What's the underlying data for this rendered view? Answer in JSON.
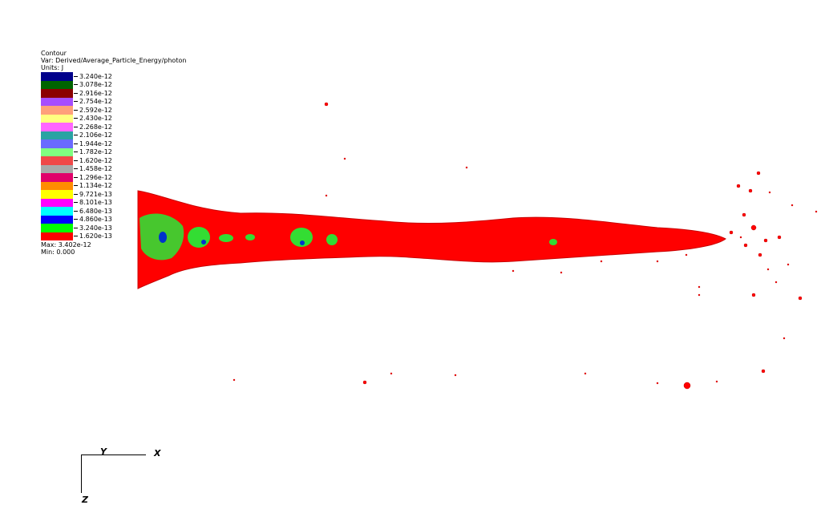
{
  "legend": {
    "title": "Contour",
    "var": "Var: Derived/Average_Particle_Energy/photon",
    "units": "Units: J",
    "levels": [
      {
        "label": "3.240e-12",
        "color": "#00008b"
      },
      {
        "label": "3.078e-12",
        "color": "#006400"
      },
      {
        "label": "2.916e-12",
        "color": "#8b0000"
      },
      {
        "label": "2.754e-12",
        "color": "#a64dff"
      },
      {
        "label": "2.592e-12",
        "color": "#ffa07a"
      },
      {
        "label": "2.430e-12",
        "color": "#ffff80"
      },
      {
        "label": "2.268e-12",
        "color": "#ff66ff"
      },
      {
        "label": "2.106e-12",
        "color": "#2aa3a3"
      },
      {
        "label": "1.944e-12",
        "color": "#6a6aff"
      },
      {
        "label": "1.782e-12",
        "color": "#80ff80"
      },
      {
        "label": "1.620e-12",
        "color": "#f04848"
      },
      {
        "label": "1.458e-12",
        "color": "#a9a9a9"
      },
      {
        "label": "1.296e-12",
        "color": "#e0006a"
      },
      {
        "label": "1.134e-12",
        "color": "#ff8c00"
      },
      {
        "label": "9.721e-13",
        "color": "#ffff00"
      },
      {
        "label": "8.101e-13",
        "color": "#ff00ff"
      },
      {
        "label": "6.480e-13",
        "color": "#00ffff"
      },
      {
        "label": "4.860e-13",
        "color": "#0000ff"
      },
      {
        "label": "3.240e-13",
        "color": "#00ff00"
      },
      {
        "label": "1.620e-13",
        "color": "#ff0000"
      }
    ],
    "max": "Max:  3.402e-12",
    "min": "Min:  0.000"
  },
  "axes": {
    "y": "Y",
    "x": "X",
    "z": "Z"
  },
  "colors": {
    "plume": "#ff0000",
    "plume_dark": "#c80000",
    "inner": "#33dd33",
    "core": "#0033cc"
  }
}
